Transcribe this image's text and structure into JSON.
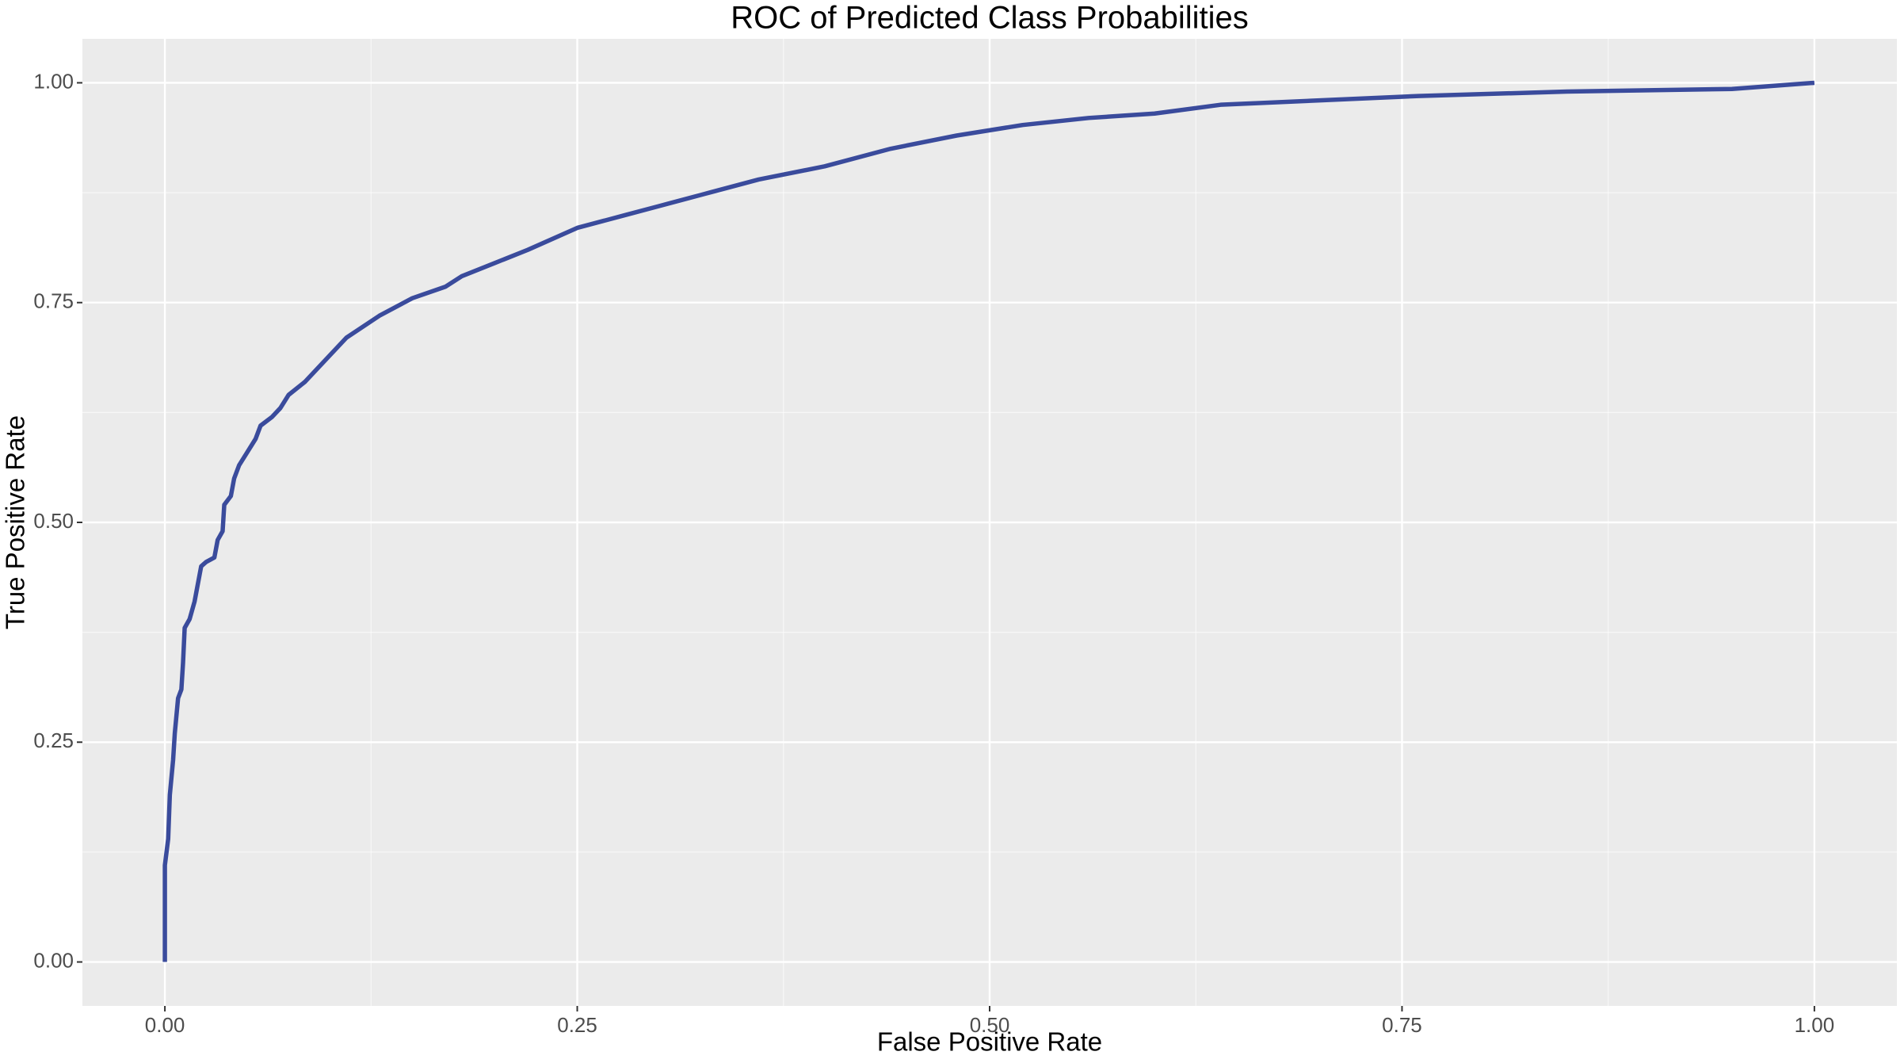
{
  "chart_data": {
    "type": "line",
    "title": "ROC of Predicted Class Probabilities",
    "x_label": "False Positive Rate",
    "y_label": "True Positive Rate",
    "x": [
      0,
      0,
      0.002,
      0.003,
      0.005,
      0.006,
      0.008,
      0.01,
      0.011,
      0.012,
      0.015,
      0.018,
      0.02,
      0.022,
      0.025,
      0.03,
      0.032,
      0.035,
      0.036,
      0.04,
      0.042,
      0.045,
      0.05,
      0.055,
      0.058,
      0.065,
      0.07,
      0.075,
      0.085,
      0.1,
      0.11,
      0.13,
      0.15,
      0.17,
      0.18,
      0.2,
      0.22,
      0.25,
      0.28,
      0.3,
      0.33,
      0.36,
      0.4,
      0.44,
      0.48,
      0.52,
      0.56,
      0.6,
      0.64,
      0.7,
      0.76,
      0.85,
      0.95,
      1
    ],
    "series": [
      {
        "name": "ROC",
        "color": "#3a4b9c",
        "values": [
          0,
          0.11,
          0.14,
          0.19,
          0.23,
          0.26,
          0.3,
          0.31,
          0.34,
          0.38,
          0.39,
          0.41,
          0.43,
          0.45,
          0.455,
          0.46,
          0.48,
          0.49,
          0.52,
          0.53,
          0.55,
          0.565,
          0.58,
          0.595,
          0.61,
          0.62,
          0.63,
          0.645,
          0.66,
          0.69,
          0.71,
          0.735,
          0.755,
          0.768,
          0.78,
          0.795,
          0.81,
          0.835,
          0.85,
          0.86,
          0.875,
          0.89,
          0.905,
          0.925,
          0.94,
          0.952,
          0.96,
          0.965,
          0.975,
          0.98,
          0.985,
          0.99,
          0.993,
          1
        ]
      }
    ],
    "xlim": [
      -0.05,
      1.05
    ],
    "ylim": [
      -0.05,
      1.05
    ],
    "xticks": [
      {
        "value": 0,
        "label": "0.00"
      },
      {
        "value": 0.25,
        "label": "0.25"
      },
      {
        "value": 0.5,
        "label": "0.50"
      },
      {
        "value": 0.75,
        "label": "0.75"
      },
      {
        "value": 1,
        "label": "1.00"
      }
    ],
    "yticks": [
      {
        "value": 0,
        "label": "0.00"
      },
      {
        "value": 0.25,
        "label": "0.25"
      },
      {
        "value": 0.5,
        "label": "0.50"
      },
      {
        "value": 0.75,
        "label": "0.75"
      },
      {
        "value": 1,
        "label": "1.00"
      }
    ],
    "grid": true
  }
}
